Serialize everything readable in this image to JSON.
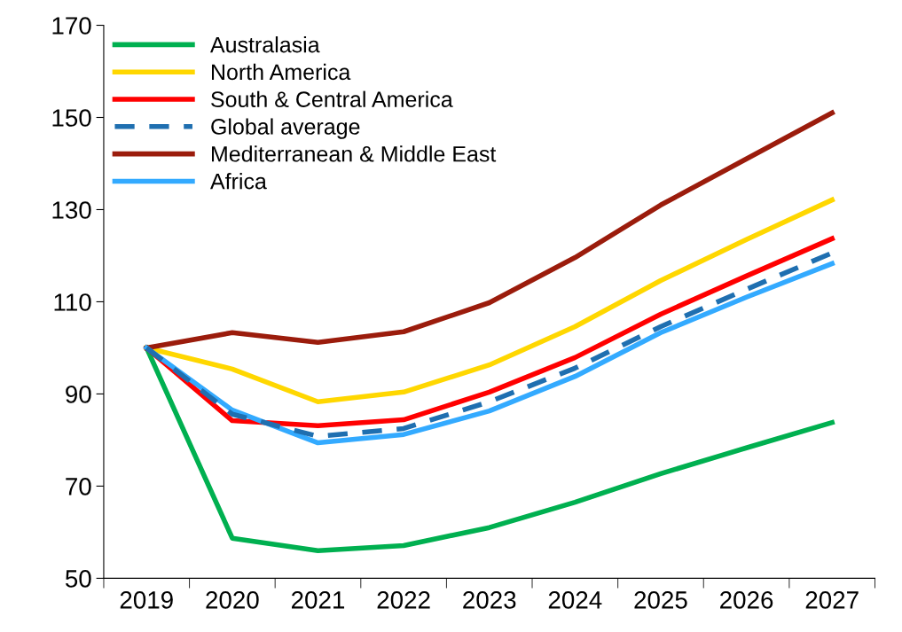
{
  "chart_data": {
    "type": "line",
    "categories": [
      "2019",
      "2020",
      "2021",
      "2022",
      "2023",
      "2024",
      "2025",
      "2026",
      "2027"
    ],
    "series": [
      {
        "name": "Australasia",
        "color": "#00b050",
        "values": [
          100,
          58.7,
          56,
          57.1,
          61,
          66.5,
          72.7,
          78.3,
          83.8
        ]
      },
      {
        "name": "North America",
        "color": "#ffd700",
        "values": [
          100,
          95.4,
          88.3,
          90.4,
          96.3,
          104.6,
          114.6,
          123.5,
          132.1
        ]
      },
      {
        "name": "South & Central America",
        "color": "#ff0000",
        "values": [
          100,
          84.2,
          83.1,
          84.4,
          90.4,
          97.9,
          107.3,
          115.6,
          123.7
        ]
      },
      {
        "name": "Global average",
        "color": "#1f6fb0",
        "line_style": "dashed",
        "values": [
          100,
          85.6,
          80.8,
          82.5,
          88.3,
          95.6,
          104.6,
          112.7,
          120.6
        ]
      },
      {
        "name": "Mediterranean & Middle East",
        "color": "#9b1c0c",
        "values": [
          100,
          103.3,
          101.2,
          103.5,
          109.8,
          119.6,
          131,
          141,
          151
        ]
      },
      {
        "name": "Africa",
        "color": "#33aaff",
        "values": [
          100,
          86.5,
          79.4,
          81.2,
          86.3,
          93.8,
          103.3,
          111,
          118.3
        ]
      }
    ],
    "ylim": [
      50,
      170
    ],
    "yticks": [
      50,
      70,
      90,
      110,
      130,
      150,
      170
    ],
    "grid": false,
    "legend": "top left",
    "marker": "none",
    "line_style": "solid"
  }
}
